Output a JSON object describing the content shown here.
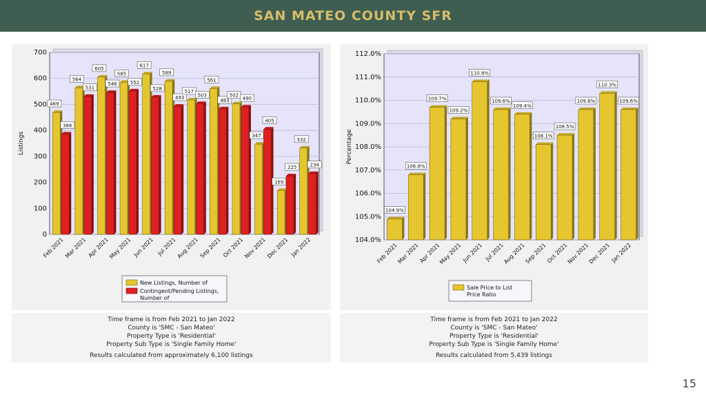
{
  "header": {
    "title": "SAN MATEO COUNTY SFR"
  },
  "page_number": "15",
  "chart_data": [
    {
      "type": "bar",
      "ylabel": "Listings",
      "ylim": [
        0,
        700
      ],
      "yticks": [
        0,
        100,
        200,
        300,
        400,
        500,
        600,
        700
      ],
      "grid": true,
      "legend_position": "bottom",
      "categories": [
        "Feb 2021",
        "Mar 2021",
        "Apr 2021",
        "May 2021",
        "Jun 2021",
        "Jul 2021",
        "Aug 2021",
        "Sep 2021",
        "Oct 2021",
        "Nov 2021",
        "Dec 2021",
        "Jan 2022"
      ],
      "series": [
        {
          "name": "New Listings, Number of",
          "color": "#e6c62e",
          "values": [
            469,
            564,
            605,
            585,
            617,
            589,
            517,
            561,
            502,
            347,
            169,
            332
          ]
        },
        {
          "name": "Contingent/Pending Listings, Number of",
          "color": "#e02020",
          "values": [
            386,
            531,
            546,
            552,
            528,
            493,
            503,
            483,
            490,
            405,
            225,
            234
          ]
        }
      ],
      "notes": [
        "Time frame is from Feb 2021 to Jan 2022",
        "County is 'SMC - San Mateo'",
        "Property Type is 'Residential'",
        "Property Sub Type is 'Single Family Home'"
      ],
      "result_note": "Results calculated from approximately 6,100 listings"
    },
    {
      "type": "bar",
      "ylabel": "Percentage",
      "ylim": [
        104.0,
        112.0
      ],
      "yticks": [
        104,
        105,
        106,
        107,
        108,
        109,
        110,
        111,
        112
      ],
      "tick_format": "0.0%",
      "grid": true,
      "legend_position": "bottom",
      "categories": [
        "Feb 2021",
        "Mar 2021",
        "Apr 2021",
        "May 2021",
        "Jun 2021",
        "Jul 2021",
        "Aug 2021",
        "Sep 2021",
        "Oct 2021",
        "Nov 2021",
        "Dec 2021",
        "Jan 2022"
      ],
      "series": [
        {
          "name": "Sale Price to List Price Ratio",
          "color": "#e6c62e",
          "values": [
            104.9,
            106.8,
            109.7,
            109.2,
            110.8,
            109.6,
            109.4,
            108.1,
            108.5,
            109.6,
            110.3,
            109.6
          ]
        }
      ],
      "notes": [
        "Time frame is from Feb 2021 to Jan 2022",
        "County is 'SMC - San Mateo'",
        "Property Type is 'Residential'",
        "Property Sub Type is 'Single Family Home'"
      ],
      "result_note": "Results calculated from 5,439 listings"
    }
  ]
}
